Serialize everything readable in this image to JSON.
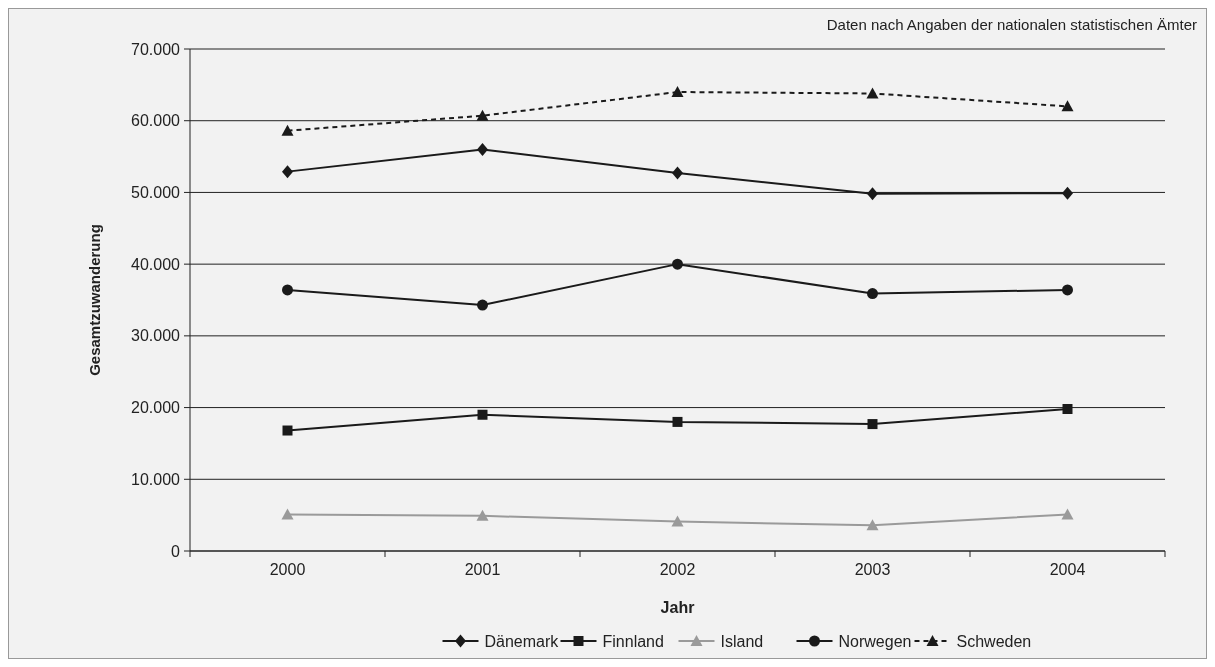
{
  "chart_data": {
    "type": "line",
    "xlabel": "Jahr",
    "ylabel": "Gesamtzuwanderung",
    "annotations": [
      "Daten nach Angaben der nationalen statistischen Ämter"
    ],
    "categories": [
      "2000",
      "2001",
      "2002",
      "2003",
      "2004"
    ],
    "series": [
      {
        "name": "Dänemark",
        "color": "#1a1a1a",
        "marker": "diamond",
        "line_style": "solid",
        "values": [
          52900,
          56000,
          52700,
          49800,
          49900
        ]
      },
      {
        "name": "Finnland",
        "color": "#1a1a1a",
        "marker": "square",
        "line_style": "solid",
        "values": [
          16800,
          19000,
          18000,
          17700,
          19800
        ]
      },
      {
        "name": "Island",
        "color": "#9a9a9a",
        "marker": "triangle",
        "line_style": "solid",
        "values": [
          5100,
          4900,
          4100,
          3600,
          5100
        ]
      },
      {
        "name": "Norwegen",
        "color": "#1a1a1a",
        "marker": "circle",
        "line_style": "solid",
        "values": [
          36400,
          34300,
          40000,
          35900,
          36400
        ]
      },
      {
        "name": "Schweden",
        "color": "#1a1a1a",
        "marker": "triangle",
        "line_style": "dashed",
        "values": [
          58600,
          60700,
          64000,
          63800,
          62000
        ]
      }
    ],
    "ylim": [
      0,
      70000
    ],
    "yticks": [
      0,
      {
        "value": 10000,
        "label": "10.000"
      },
      {
        "value": 20000,
        "label": "20.000"
      },
      {
        "value": 30000,
        "label": "30.000"
      },
      {
        "value": 40000,
        "label": "40.000"
      },
      {
        "value": 50000,
        "label": "50.000"
      },
      {
        "value": 60000,
        "label": "60.000"
      },
      {
        "value": 70000,
        "label": "70.000"
      }
    ],
    "grid": "y",
    "legend": "bottom"
  }
}
